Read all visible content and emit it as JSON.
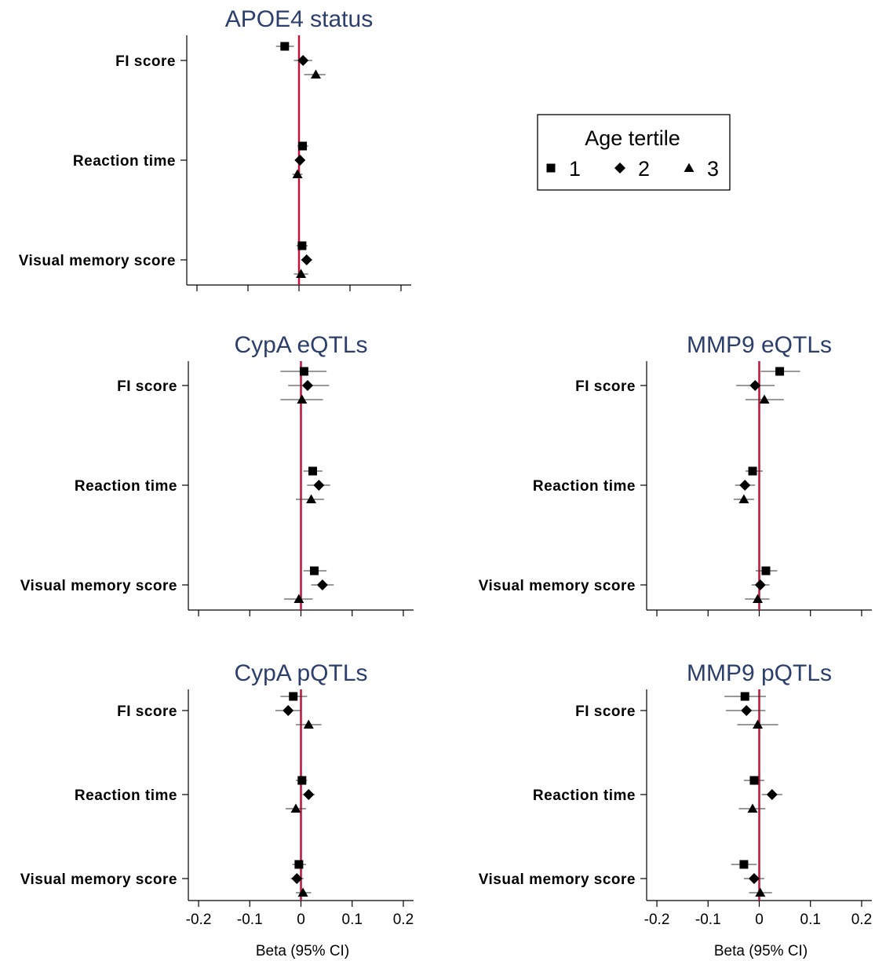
{
  "colors": {
    "reference_line": "#c0143c",
    "title": "#2c3e6b",
    "marker": "#000000",
    "ci": "#333333",
    "axis": "#000000"
  },
  "legend": {
    "title": "Age tertile",
    "entries": [
      {
        "label": "1",
        "marker": "square"
      },
      {
        "label": "2",
        "marker": "diamond"
      },
      {
        "label": "3",
        "marker": "triangle"
      }
    ]
  },
  "chart_data": [
    {
      "type": "forest",
      "title": "APOE4 status",
      "categories": [
        "FI score",
        "Reaction time",
        "Visual memory score"
      ],
      "xlim": [
        -0.22,
        0.22
      ],
      "xticks": [
        -0.2,
        -0.1,
        0,
        0.1,
        0.2
      ],
      "show_tick_labels": false,
      "xlabel": "",
      "reference_x": 0,
      "series": [
        {
          "name": "1",
          "points": [
            {
              "est": -0.028,
              "lo": -0.045,
              "hi": -0.01
            },
            {
              "est": 0.007,
              "lo": -0.003,
              "hi": 0.018
            },
            {
              "est": 0.006,
              "lo": -0.005,
              "hi": 0.017
            }
          ]
        },
        {
          "name": "2",
          "points": [
            {
              "est": 0.008,
              "lo": -0.01,
              "hi": 0.026
            },
            {
              "est": 0.002,
              "lo": -0.007,
              "hi": 0.011
            },
            {
              "est": 0.015,
              "lo": 0.004,
              "hi": 0.026
            }
          ]
        },
        {
          "name": "3",
          "points": [
            {
              "est": 0.033,
              "lo": 0.01,
              "hi": 0.052
            },
            {
              "est": -0.003,
              "lo": -0.013,
              "hi": 0.007
            },
            {
              "est": 0.004,
              "lo": -0.01,
              "hi": 0.018
            }
          ]
        }
      ]
    },
    {
      "type": "forest",
      "title": "CypA eQTLs",
      "categories": [
        "FI score",
        "Reaction time",
        "Visual memory score"
      ],
      "xlim": [
        -0.22,
        0.22
      ],
      "xticks": [
        -0.2,
        -0.1,
        0,
        0.1,
        0.2
      ],
      "show_tick_labels": false,
      "xlabel": "",
      "reference_x": 0,
      "series": [
        {
          "name": "1",
          "points": [
            {
              "est": 0.006,
              "lo": -0.04,
              "hi": 0.05
            },
            {
              "est": 0.023,
              "lo": 0.005,
              "hi": 0.042
            },
            {
              "est": 0.026,
              "lo": 0.005,
              "hi": 0.05
            }
          ]
        },
        {
          "name": "2",
          "points": [
            {
              "est": 0.013,
              "lo": -0.025,
              "hi": 0.055
            },
            {
              "est": 0.035,
              "lo": 0.012,
              "hi": 0.057
            },
            {
              "est": 0.042,
              "lo": 0.02,
              "hi": 0.064
            }
          ]
        },
        {
          "name": "3",
          "points": [
            {
              "est": 0.002,
              "lo": -0.04,
              "hi": 0.043
            },
            {
              "est": 0.02,
              "lo": -0.01,
              "hi": 0.045
            },
            {
              "est": -0.004,
              "lo": -0.033,
              "hi": 0.023
            }
          ]
        }
      ]
    },
    {
      "type": "forest",
      "title": "MMP9 eQTLs",
      "categories": [
        "FI score",
        "Reaction time",
        "Visual memory score"
      ],
      "xlim": [
        -0.22,
        0.22
      ],
      "xticks": [
        -0.2,
        -0.1,
        0,
        0.1,
        0.2
      ],
      "show_tick_labels": false,
      "xlabel": "",
      "reference_x": 0,
      "series": [
        {
          "name": "1",
          "points": [
            {
              "est": 0.04,
              "lo": 0.003,
              "hi": 0.08
            },
            {
              "est": -0.013,
              "lo": -0.027,
              "hi": 0.007
            },
            {
              "est": 0.013,
              "lo": -0.007,
              "hi": 0.035
            }
          ]
        },
        {
          "name": "2",
          "points": [
            {
              "est": -0.008,
              "lo": -0.045,
              "hi": 0.03
            },
            {
              "est": -0.028,
              "lo": -0.047,
              "hi": -0.008
            },
            {
              "est": 0.002,
              "lo": -0.015,
              "hi": 0.02
            }
          ]
        },
        {
          "name": "3",
          "points": [
            {
              "est": 0.01,
              "lo": -0.027,
              "hi": 0.048
            },
            {
              "est": -0.03,
              "lo": -0.05,
              "hi": -0.01
            },
            {
              "est": -0.003,
              "lo": -0.028,
              "hi": 0.02
            }
          ]
        }
      ]
    },
    {
      "type": "forest",
      "title": "CypA pQTLs",
      "categories": [
        "FI score",
        "Reaction time",
        "Visual memory score"
      ],
      "xlim": [
        -0.22,
        0.22
      ],
      "xticks": [
        -0.2,
        -0.1,
        0,
        0.1,
        0.2
      ],
      "xticklabels": [
        "-0.2",
        "-0.1",
        "0",
        "0.1",
        "0.2"
      ],
      "show_tick_labels": true,
      "xlabel": "Beta (95% CI)",
      "reference_x": 0,
      "series": [
        {
          "name": "1",
          "points": [
            {
              "est": -0.015,
              "lo": -0.04,
              "hi": 0.012
            },
            {
              "est": 0.002,
              "lo": -0.01,
              "hi": 0.012
            },
            {
              "est": -0.004,
              "lo": -0.017,
              "hi": 0.01
            }
          ]
        },
        {
          "name": "2",
          "points": [
            {
              "est": -0.025,
              "lo": -0.05,
              "hi": 0.0
            },
            {
              "est": 0.015,
              "lo": 0.003,
              "hi": 0.027
            },
            {
              "est": -0.008,
              "lo": -0.02,
              "hi": 0.005
            }
          ]
        },
        {
          "name": "3",
          "points": [
            {
              "est": 0.015,
              "lo": -0.01,
              "hi": 0.04
            },
            {
              "est": -0.01,
              "lo": -0.03,
              "hi": 0.01
            },
            {
              "est": 0.004,
              "lo": -0.01,
              "hi": 0.02
            }
          ]
        }
      ]
    },
    {
      "type": "forest",
      "title": "MMP9 pQTLs",
      "categories": [
        "FI score",
        "Reaction time",
        "Visual memory score"
      ],
      "xlim": [
        -0.22,
        0.22
      ],
      "xticks": [
        -0.2,
        -0.1,
        0,
        0.1,
        0.2
      ],
      "xticklabels": [
        "-0.2",
        "-0.1",
        "0",
        "0.1",
        "0.2"
      ],
      "show_tick_labels": true,
      "xlabel": "Beta (95% CI)",
      "reference_x": 0,
      "series": [
        {
          "name": "1",
          "points": [
            {
              "est": -0.028,
              "lo": -0.068,
              "hi": 0.013
            },
            {
              "est": -0.01,
              "lo": -0.03,
              "hi": 0.01
            },
            {
              "est": -0.03,
              "lo": -0.055,
              "hi": -0.005
            }
          ]
        },
        {
          "name": "2",
          "points": [
            {
              "est": -0.025,
              "lo": -0.065,
              "hi": 0.012
            },
            {
              "est": 0.025,
              "lo": 0.005,
              "hi": 0.045
            },
            {
              "est": -0.01,
              "lo": -0.03,
              "hi": 0.01
            }
          ]
        },
        {
          "name": "3",
          "points": [
            {
              "est": -0.003,
              "lo": -0.043,
              "hi": 0.037
            },
            {
              "est": -0.013,
              "lo": -0.04,
              "hi": 0.012
            },
            {
              "est": 0.002,
              "lo": -0.02,
              "hi": 0.025
            }
          ]
        }
      ]
    }
  ]
}
